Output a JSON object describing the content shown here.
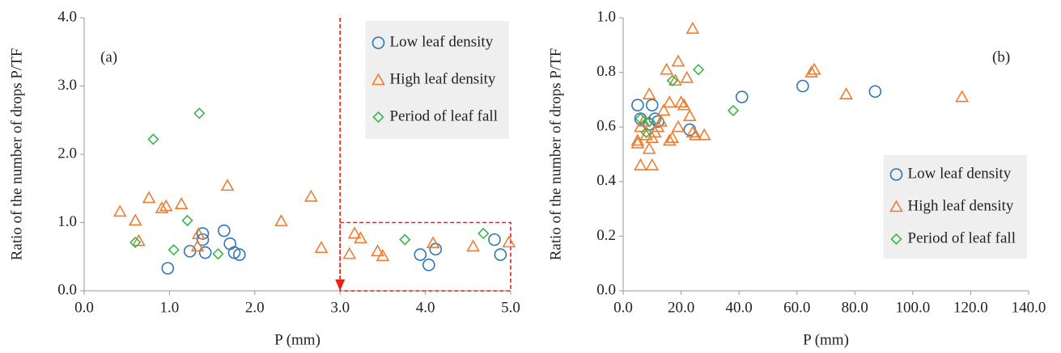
{
  "chart_data": [
    {
      "type": "scatter",
      "annotation": "(a)",
      "xlabel": "P (mm)",
      "ylabel": "Ratio of the number of drops P/TF",
      "xlim": [
        0,
        5
      ],
      "ylim": [
        0,
        4
      ],
      "xticks": [
        {
          "value": 0,
          "label": "0.0"
        },
        {
          "value": 1,
          "label": "1.0"
        },
        {
          "value": 2,
          "label": "2.0"
        },
        {
          "value": 3,
          "label": "3.0"
        },
        {
          "value": 4,
          "label": "4.0"
        },
        {
          "value": 5,
          "label": "5.0"
        }
      ],
      "yticks": [
        {
          "value": 0,
          "label": "0.0"
        },
        {
          "value": 1,
          "label": "1.0"
        },
        {
          "value": 2,
          "label": "2.0"
        },
        {
          "value": 3,
          "label": "3.0"
        },
        {
          "value": 4,
          "label": "4.0"
        }
      ],
      "legend": "upper right",
      "highlight": {
        "x": [
          3,
          5
        ],
        "y": [
          0,
          1
        ],
        "color": "#e8201a"
      },
      "series": [
        {
          "name": "Low leaf density",
          "color": "#2e75b6",
          "marker": "circle",
          "x": [
            0.98,
            1.24,
            1.39,
            1.39,
            1.42,
            1.64,
            1.71,
            1.76,
            1.82,
            3.94,
            4.04,
            4.12,
            4.81,
            4.88
          ],
          "values": [
            0.33,
            0.58,
            0.75,
            0.84,
            0.56,
            0.88,
            0.69,
            0.56,
            0.53,
            0.53,
            0.38,
            0.61,
            0.75,
            0.53
          ]
        },
        {
          "name": "High leaf density",
          "color": "#ed7d31",
          "marker": "triangle",
          "x": [
            0.42,
            0.6,
            0.64,
            0.76,
            0.91,
            0.96,
            1.14,
            1.33,
            1.34,
            1.68,
            2.31,
            2.66,
            2.78,
            3.11,
            3.17,
            3.24,
            3.44,
            3.5,
            4.09,
            4.56,
            4.98
          ],
          "values": [
            1.16,
            1.03,
            0.73,
            1.36,
            1.21,
            1.24,
            1.27,
            0.65,
            0.83,
            1.54,
            1.02,
            1.38,
            0.63,
            0.54,
            0.84,
            0.77,
            0.58,
            0.51,
            0.7,
            0.65,
            0.71
          ]
        },
        {
          "name": "Period of leaf fall",
          "color": "#3cb54a",
          "marker": "diamond",
          "x": [
            0.81,
            1.35,
            0.6,
            1.05,
            1.21,
            1.57,
            3.76,
            4.68
          ],
          "values": [
            2.22,
            2.6,
            0.71,
            0.6,
            1.03,
            0.54,
            0.75,
            0.84
          ]
        }
      ]
    },
    {
      "type": "scatter",
      "annotation": "(b)",
      "xlabel": "P (mm)",
      "ylabel": "Ratio of the number of drops P/TF",
      "xlim": [
        0,
        140
      ],
      "ylim": [
        0,
        1
      ],
      "xticks": [
        {
          "value": 0,
          "label": "0.0"
        },
        {
          "value": 20,
          "label": "20.0"
        },
        {
          "value": 40,
          "label": "40.0"
        },
        {
          "value": 60,
          "label": "60.0"
        },
        {
          "value": 80,
          "label": "80.0"
        },
        {
          "value": 100,
          "label": "100.0"
        },
        {
          "value": 120,
          "label": "120.0"
        },
        {
          "value": 140,
          "label": "140.0"
        }
      ],
      "yticks": [
        {
          "value": 0,
          "label": "0.0"
        },
        0.2,
        0.4,
        0.6,
        0.8,
        {
          "value": 1,
          "label": "1.0"
        }
      ],
      "legend": "lower right",
      "series": [
        {
          "name": "Low leaf density",
          "color": "#2e75b6",
          "marker": "circle",
          "x": [
            5,
            10,
            6,
            9,
            11,
            12,
            23,
            41,
            62,
            87
          ],
          "values": [
            0.68,
            0.68,
            0.63,
            0.61,
            0.63,
            0.62,
            0.59,
            0.71,
            0.75,
            0.73
          ]
        },
        {
          "name": "High leaf density",
          "color": "#ed7d31",
          "marker": "triangle",
          "x": [
            5,
            5,
            6,
            6,
            7,
            8,
            9,
            9,
            10,
            10,
            11,
            12,
            13,
            14,
            15,
            16,
            16,
            17,
            18,
            19,
            19,
            20,
            21,
            22,
            23,
            24,
            24,
            25,
            28,
            65,
            66,
            77,
            117
          ],
          "values": [
            0.55,
            0.54,
            0.46,
            0.6,
            0.62,
            0.57,
            0.52,
            0.72,
            0.46,
            0.56,
            0.58,
            0.6,
            0.62,
            0.66,
            0.81,
            0.55,
            0.69,
            0.56,
            0.77,
            0.84,
            0.6,
            0.69,
            0.68,
            0.78,
            0.64,
            0.96,
            0.58,
            0.57,
            0.57,
            0.8,
            0.81,
            0.72,
            0.71
          ]
        },
        {
          "name": "Period of leaf fall",
          "color": "#3cb54a",
          "marker": "diamond",
          "x": [
            6,
            8,
            9,
            17,
            26,
            38
          ],
          "values": [
            0.63,
            0.58,
            0.62,
            0.77,
            0.81,
            0.66
          ]
        }
      ]
    }
  ]
}
